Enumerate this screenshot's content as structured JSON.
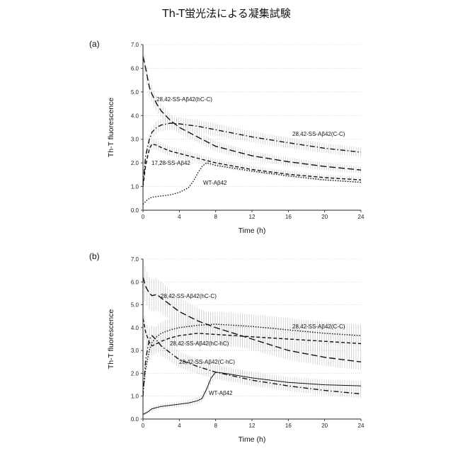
{
  "figure_title": "Th-T蛍光法による凝集試験",
  "chart_data": [
    {
      "type": "line",
      "panel_label": "(a)",
      "xlabel": "Time (h)",
      "ylabel": "Th-T fluorescence",
      "xlim": [
        0,
        24
      ],
      "ylim": [
        0,
        7
      ],
      "xticks": [
        0,
        4,
        8,
        12,
        16,
        20,
        24
      ],
      "yticks": [
        "0.0",
        "1.0",
        "2.0",
        "3.0",
        "4.0",
        "5.0",
        "6.0",
        "7.0"
      ],
      "grid": "horizontal dotted",
      "series": [
        {
          "name": "28,42-SS-Aβ42(hC-C)",
          "style": "dashed-long",
          "error_band": true,
          "x": [
            0,
            0.3,
            0.7,
            1,
            1.5,
            2,
            3,
            4,
            6,
            8,
            12,
            16,
            20,
            24
          ],
          "y": [
            6.5,
            6.0,
            5.2,
            4.9,
            4.5,
            4.2,
            3.8,
            3.5,
            3.1,
            2.7,
            2.3,
            2.05,
            1.85,
            1.7
          ]
        },
        {
          "name": "28,42-SS-Aβ42(C-C)",
          "style": "dash-dot",
          "error_band": true,
          "x": [
            0,
            0.3,
            0.7,
            1,
            1.5,
            2,
            3,
            4,
            6,
            8,
            12,
            16,
            20,
            24
          ],
          "y": [
            1.1,
            2.3,
            3.0,
            3.3,
            3.5,
            3.6,
            3.68,
            3.65,
            3.55,
            3.4,
            3.1,
            2.85,
            2.62,
            2.45
          ]
        },
        {
          "name": "17,28-SS-Aβ42",
          "style": "dashed-short",
          "error_band": true,
          "x": [
            0,
            0.3,
            0.7,
            1,
            1.5,
            2,
            3,
            4,
            6,
            8,
            12,
            16,
            20,
            24
          ],
          "y": [
            1.0,
            1.9,
            2.6,
            2.8,
            2.75,
            2.65,
            2.5,
            2.4,
            2.2,
            2.0,
            1.72,
            1.52,
            1.38,
            1.28
          ]
        },
        {
          "name": "WT-Aβ42",
          "style": "dotted",
          "error_band": false,
          "x": [
            0,
            0.5,
            1,
            2,
            3,
            4,
            5,
            5.5,
            6,
            6.5,
            7,
            8,
            12,
            16,
            20,
            24
          ],
          "y": [
            0.25,
            0.45,
            0.55,
            0.6,
            0.65,
            0.75,
            0.95,
            1.2,
            1.55,
            1.85,
            2.0,
            1.9,
            1.65,
            1.45,
            1.28,
            1.18
          ]
        }
      ]
    },
    {
      "type": "line",
      "panel_label": "(b)",
      "xlabel": "Time (h)",
      "ylabel": "Th-T fluorescence",
      "xlim": [
        0,
        24
      ],
      "ylim": [
        0,
        7
      ],
      "xticks": [
        0,
        4,
        8,
        12,
        16,
        20,
        24
      ],
      "yticks": [
        "0.0",
        "1.0",
        "2.0",
        "3.0",
        "4.0",
        "5.0",
        "6.0",
        "7.0"
      ],
      "grid": "horizontal dotted",
      "series": [
        {
          "name": "28,42-SS-Aβ42(hC-C)",
          "style": "dashed-long",
          "error_band": true,
          "x": [
            0,
            0.3,
            0.7,
            1,
            1.5,
            2,
            3,
            4,
            6,
            8,
            12,
            16,
            20,
            24
          ],
          "y": [
            6.2,
            5.8,
            5.5,
            5.4,
            5.45,
            5.3,
            5.0,
            4.7,
            4.3,
            4.0,
            3.5,
            3.0,
            2.7,
            2.5
          ]
        },
        {
          "name": "28,42-SS-Aβ42(C-C)",
          "style": "dotted",
          "error_band": true,
          "x": [
            0,
            0.3,
            0.7,
            1,
            1.5,
            2,
            3,
            4,
            6,
            8,
            12,
            16,
            20,
            24
          ],
          "y": [
            1.2,
            2.2,
            3.0,
            3.35,
            3.6,
            3.75,
            3.9,
            4.0,
            4.1,
            4.15,
            4.05,
            3.9,
            3.75,
            3.65
          ]
        },
        {
          "name": "28,42-SS-Aβ42(hC-hC)",
          "style": "dashed-short",
          "error_band": true,
          "x": [
            0,
            0.3,
            0.7,
            1,
            1.5,
            2,
            3,
            4,
            6,
            8,
            12,
            16,
            20,
            24
          ],
          "y": [
            4.4,
            3.8,
            3.35,
            3.2,
            3.3,
            3.4,
            3.55,
            3.65,
            3.75,
            3.7,
            3.6,
            3.5,
            3.4,
            3.3
          ]
        },
        {
          "name": "28,42-SS-Aβ42(C-hC)",
          "style": "dash-dot",
          "error_band": true,
          "x": [
            0,
            0.3,
            0.7,
            1,
            1.5,
            2,
            3,
            4,
            6,
            8,
            12,
            16,
            20,
            24
          ],
          "y": [
            1.0,
            2.6,
            3.5,
            3.65,
            3.45,
            3.2,
            2.9,
            2.6,
            2.3,
            2.05,
            1.7,
            1.45,
            1.25,
            1.1
          ]
        },
        {
          "name": "WT-Aβ42",
          "style": "solid",
          "error_band": true,
          "x": [
            0,
            0.5,
            1,
            2,
            3,
            4,
            5,
            6,
            6.5,
            7,
            7.5,
            8,
            9,
            12,
            16,
            20,
            24
          ],
          "y": [
            0.2,
            0.3,
            0.45,
            0.55,
            0.6,
            0.65,
            0.7,
            0.8,
            0.9,
            1.3,
            1.8,
            2.05,
            2.0,
            1.8,
            1.6,
            1.5,
            1.45
          ]
        }
      ]
    }
  ]
}
